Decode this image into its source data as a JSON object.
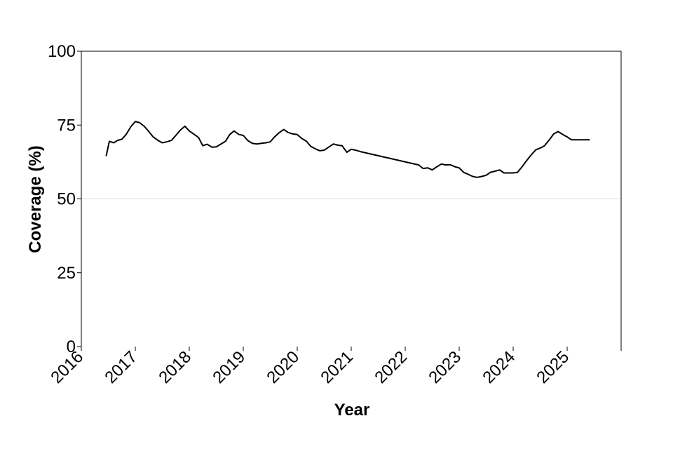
{
  "chart_data": {
    "type": "line",
    "title": "",
    "xlabel": "Year",
    "ylabel": "Coverage (%)",
    "xlim": [
      2016,
      2026
    ],
    "ylim": [
      0,
      100
    ],
    "x_ticks": [
      "2016",
      "2017",
      "2018",
      "2019",
      "2020",
      "2021",
      "2022",
      "2023",
      "2024",
      "2025"
    ],
    "y_ticks": [
      "0",
      "25",
      "50",
      "75",
      "100"
    ],
    "grid": "horizontal line at 50 only",
    "line_color": "#000000",
    "series": [
      {
        "x": [
          2016.46,
          2016.52,
          2016.6,
          2016.67,
          2016.75,
          2016.83,
          2016.92,
          2017.0,
          2017.08,
          2017.17,
          2017.25,
          2017.33,
          2017.42,
          2017.5,
          2017.58,
          2017.67,
          2017.75,
          2017.83,
          2017.92,
          2018.0,
          2018.08,
          2018.17,
          2018.25,
          2018.33,
          2018.42,
          2018.5,
          2018.58,
          2018.67,
          2018.75,
          2018.83,
          2018.92,
          2019.0,
          2019.08,
          2019.17,
          2019.25,
          2019.33,
          2019.42,
          2019.5,
          2019.58,
          2019.67,
          2019.75,
          2019.83,
          2019.92,
          2020.0,
          2020.08,
          2020.17,
          2020.25,
          2020.33,
          2020.42,
          2020.5,
          2020.58,
          2020.67,
          2020.75,
          2020.83,
          2020.92,
          2021.0,
          2021.08,
          2021.17,
          2022.25,
          2022.33,
          2022.42,
          2022.5,
          2022.58,
          2022.67,
          2022.75,
          2022.83,
          2022.92,
          2023.0,
          2023.08,
          2023.17,
          2023.25,
          2023.33,
          2023.42,
          2023.5,
          2023.58,
          2023.67,
          2023.75,
          2023.83,
          2023.92,
          2024.0,
          2024.08,
          2024.17,
          2024.25,
          2024.33,
          2024.42,
          2024.5,
          2024.58,
          2024.67,
          2024.75,
          2024.83,
          2024.92,
          2025.0,
          2025.08,
          2025.17,
          2025.25,
          2025.33,
          2025.42
        ],
        "y": [
          64.5,
          69.5,
          69.0,
          69.8,
          70.2,
          71.8,
          74.5,
          76.2,
          75.8,
          74.5,
          72.8,
          71.0,
          69.8,
          69.0,
          69.3,
          69.8,
          71.5,
          73.2,
          74.6,
          73.0,
          72.0,
          70.8,
          68.0,
          68.5,
          67.5,
          67.6,
          68.5,
          69.5,
          71.8,
          73.0,
          71.8,
          71.5,
          69.8,
          68.8,
          68.6,
          68.8,
          69.0,
          69.3,
          71.0,
          72.5,
          73.5,
          72.5,
          72.0,
          71.8,
          70.5,
          69.5,
          67.8,
          67.0,
          66.3,
          66.5,
          67.5,
          68.6,
          68.2,
          68.0,
          65.8,
          66.8,
          66.5,
          66.0,
          61.5,
          60.3,
          60.5,
          59.8,
          60.8,
          61.8,
          61.5,
          61.6,
          60.9,
          60.5,
          59.0,
          58.3,
          57.6,
          57.3,
          57.6,
          58.0,
          59.0,
          59.4,
          59.8,
          58.8,
          58.8,
          58.8,
          59.0,
          61.0,
          63.0,
          64.8,
          66.6,
          67.2,
          68.0,
          70.0,
          72.0,
          72.8,
          71.8,
          71.0,
          70.0,
          70.0,
          70.0,
          70.0,
          70.0
        ]
      }
    ]
  }
}
